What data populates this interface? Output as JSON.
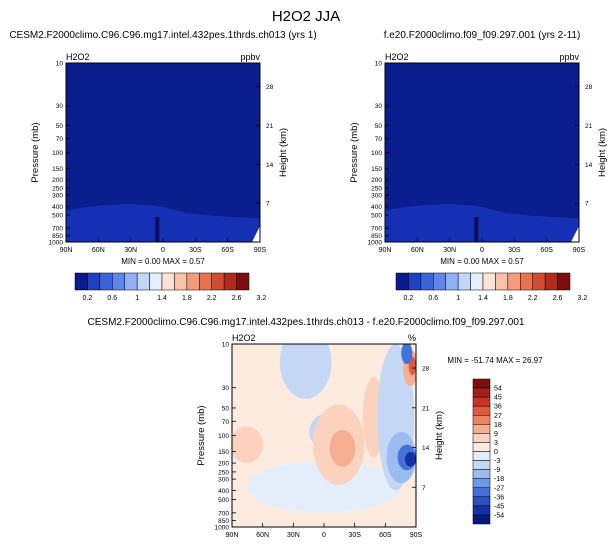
{
  "figure_title": "H2O2 JJA",
  "chart_data": [
    {
      "type": "heatmap",
      "title": "CESM2.F2000climo.C96.C96.mg17.intel.432pes.1thrds.ch013 (yrs 1)",
      "variable": "H2O2",
      "units": "ppbv",
      "ylabel": "Pressure (mb)",
      "ylabel_right": "Height (km)",
      "x_ticks": [
        "90N",
        "60N",
        "30N",
        "0",
        "30S",
        "60S",
        "90S"
      ],
      "pressure_ticks": [
        10,
        30,
        50,
        70,
        100,
        150,
        200,
        250,
        300,
        400,
        500,
        700,
        850,
        1000
      ],
      "height_ticks": [
        28,
        21,
        14,
        7
      ],
      "min": 0.0,
      "max": 0.57,
      "stats_text": "MIN =  0.00  MAX =  0.57",
      "colorbar_labels": [
        "0.2",
        "0.6",
        "1",
        "1.4",
        "1.8",
        "2.2",
        "2.6",
        "3.2"
      ],
      "colorbar_colors": [
        "#0a1a8c",
        "#1f3fc4",
        "#3a63db",
        "#5f86ea",
        "#90b0f2",
        "#c2d6f8",
        "#e6eefb",
        "#fde3d6",
        "#f9c1a9",
        "#f39c7c",
        "#e87250",
        "#d44b34",
        "#b22a1e",
        "#7d0e0e"
      ]
    },
    {
      "type": "heatmap",
      "title": "f.e20.F2000climo.f09_f09.297.001 (yrs 2-11)",
      "variable": "H2O2",
      "units": "ppbv",
      "ylabel": "Pressure (mb)",
      "ylabel_right": "Height (km)",
      "x_ticks": [
        "90N",
        "60N",
        "30N",
        "0",
        "30S",
        "60S",
        "90S"
      ],
      "pressure_ticks": [
        10,
        30,
        50,
        70,
        100,
        150,
        200,
        250,
        300,
        400,
        500,
        700,
        850,
        1000
      ],
      "height_ticks": [
        28,
        21,
        14,
        7
      ],
      "min": 0.0,
      "max": 0.57,
      "stats_text": "MIN =  0.00  MAX =  0.57",
      "colorbar_labels": [
        "0.2",
        "0.6",
        "1",
        "1.4",
        "1.8",
        "2.2",
        "2.6",
        "3.2"
      ],
      "colorbar_colors": [
        "#0a1a8c",
        "#1f3fc4",
        "#3a63db",
        "#5f86ea",
        "#90b0f2",
        "#c2d6f8",
        "#e6eefb",
        "#fde3d6",
        "#f9c1a9",
        "#f39c7c",
        "#e87250",
        "#d44b34",
        "#b22a1e",
        "#7d0e0e"
      ]
    },
    {
      "type": "heatmap",
      "title": "CESM2.F2000climo.C96.C96.mg17.intel.432pes.1thrds.ch013 - f.e20.F2000climo.f09_f09.297.001",
      "variable": "H2O2",
      "units": "%",
      "ylabel": "Pressure (mb)",
      "ylabel_right": "Height (km)",
      "x_ticks": [
        "90N",
        "60N",
        "30N",
        "0",
        "30S",
        "60S",
        "90S"
      ],
      "pressure_ticks": [
        10,
        30,
        50,
        70,
        100,
        150,
        200,
        250,
        300,
        400,
        500,
        700,
        850,
        1000
      ],
      "height_ticks": [
        28,
        21,
        14,
        7
      ],
      "min": -51.74,
      "max": 26.97,
      "stats_text": "MIN = -51.74  MAX = 26.97",
      "colorbar_labels": [
        "54",
        "45",
        "36",
        "27",
        "18",
        "9",
        "3",
        "0",
        "-3",
        "-9",
        "-18",
        "-27",
        "-36",
        "-45",
        "-54"
      ],
      "colorbar_colors": [
        "#7d0e0e",
        "#a61e1a",
        "#c8332a",
        "#df5a3e",
        "#ee8463",
        "#f6ae90",
        "#fbd2bd",
        "#fdebdf",
        "#e4eefb",
        "#c4d8f6",
        "#9bbcf0",
        "#6f98e6",
        "#4572d8",
        "#2a4fc4",
        "#1432a8",
        "#08177c"
      ]
    }
  ]
}
